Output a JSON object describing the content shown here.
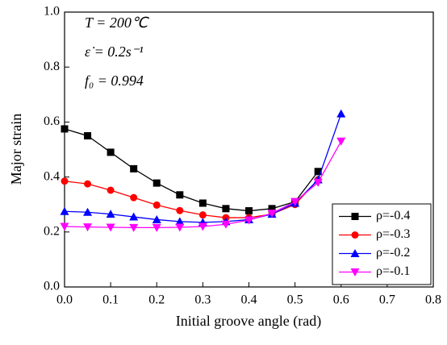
{
  "chart_data": {
    "type": "line",
    "annotations": [
      "T = 200℃",
      "ε̇ = 0.2s⁻¹",
      "f₀ = 0.994"
    ],
    "x_label": "Initial groove angle (rad)",
    "y_label": "Major strain",
    "x": [
      0,
      0.05,
      0.1,
      0.15,
      0.2,
      0.25,
      0.3,
      0.35,
      0.4,
      0.45,
      0.5,
      0.55,
      0.6
    ],
    "series": [
      {
        "name": "ρ=-0.4",
        "color": "#000000",
        "marker": "square",
        "values": [
          0.575,
          0.55,
          0.49,
          0.43,
          0.378,
          0.335,
          0.305,
          0.285,
          0.277,
          0.285,
          0.31,
          0.42,
          null
        ]
      },
      {
        "name": "ρ=-0.3",
        "color": "#ff0000",
        "marker": "circle",
        "values": [
          0.385,
          0.375,
          0.352,
          0.325,
          0.298,
          0.278,
          0.262,
          0.252,
          0.252,
          0.265,
          0.3,
          0.39,
          null
        ]
      },
      {
        "name": "ρ=-0.2",
        "color": "#0000ff",
        "marker": "triangle-up",
        "values": [
          0.275,
          0.272,
          0.265,
          0.255,
          0.245,
          0.238,
          0.235,
          0.238,
          0.245,
          0.265,
          0.305,
          0.39,
          0.63
        ]
      },
      {
        "name": "ρ=-0.1",
        "color": "#ff00ff",
        "marker": "triangle-down",
        "values": [
          0.22,
          0.218,
          0.217,
          0.216,
          0.216,
          0.217,
          0.22,
          0.228,
          0.243,
          0.268,
          0.31,
          0.38,
          0.53
        ]
      }
    ],
    "xlim": [
      0,
      0.8
    ],
    "xticks": [
      {
        "value": 0,
        "label": "0.0"
      },
      0.1,
      0.2,
      0.3,
      0.4,
      0.5,
      0.6,
      0.7,
      0.8
    ],
    "ylim": [
      0,
      1
    ],
    "yticks": [
      {
        "value": 0,
        "label": "0.0"
      },
      0.2,
      0.4,
      0.6,
      0.8,
      {
        "value": 1,
        "label": "1.0"
      }
    ],
    "legend": "lower right"
  }
}
